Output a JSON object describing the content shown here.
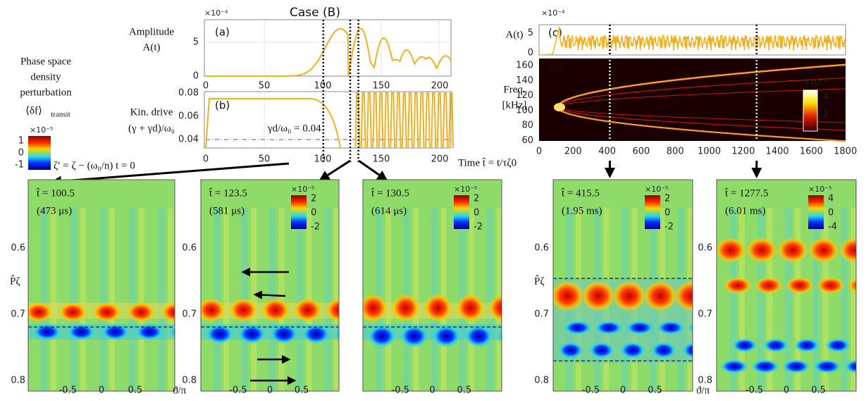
{
  "title": "Case (B)",
  "legend": {
    "lines": [
      "Phase space",
      "density",
      "perturbation"
    ],
    "symbol": "⟨δf⟩",
    "subscript": "transit",
    "colorbar_exponent": "×10⁻⁵",
    "colorbar_ticks": [
      "1",
      "0",
      "-1"
    ],
    "reference": "ζ′ = ζ − (ω₀/n) t = 0"
  },
  "panel_a": {
    "label": "(a)",
    "ylabel": [
      "Amplitude",
      "A(t)"
    ],
    "exponent": "×10⁻⁴",
    "yticks": [
      "5",
      "0"
    ],
    "xticks": [
      "0",
      "50",
      "100",
      "150",
      "200"
    ]
  },
  "panel_b": {
    "label": "(b)",
    "ylabel": [
      "Kin. drive",
      "(γ + γd)/ω₀"
    ],
    "yticks": [
      "0.08",
      "0.06",
      "0.04"
    ],
    "xticks": [
      "0",
      "50",
      "100",
      "150",
      "200"
    ],
    "annotation": "γd/ω₀ = 0.04"
  },
  "panel_c": {
    "label": "(c)",
    "ylabel": "A(t)",
    "exponent": "×10⁻⁴",
    "yticks": [
      "5",
      "0"
    ]
  },
  "panel_d": {
    "label": "(d)",
    "ylabel": [
      "Freq.",
      "[kHz]"
    ],
    "yticks": [
      "160",
      "140",
      "120",
      "100",
      "80",
      "60"
    ],
    "xticks": [
      "0",
      "200",
      "400",
      "600",
      "800",
      "1000",
      "1200",
      "1400",
      "1600",
      "1800"
    ],
    "colorbar_exponent": "×10⁻³",
    "colorbar_ticks": [
      "4",
      "2"
    ],
    "xlabel": "Time t̂ = t/τζ0"
  },
  "snapshots": [
    {
      "time": "t̂ = 100.5",
      "physical": "(473 μs)"
    },
    {
      "time": "t̂ = 123.5",
      "physical": "(581 μs)",
      "colorbar_exponent": "×10⁻⁵",
      "colorbar_ticks": [
        "2",
        "0",
        "-2"
      ]
    },
    {
      "time": "t̂ = 130.5",
      "physical": "(614 μs)",
      "colorbar_exponent": "×10⁻⁵",
      "colorbar_ticks": [
        "2",
        "0",
        "-2"
      ]
    },
    {
      "time": "t̂ = 415.5",
      "physical": "(1.95 ms)",
      "colorbar_exponent": "×10⁻⁵",
      "colorbar_ticks": [
        "2",
        "0",
        "-2"
      ]
    },
    {
      "time": "t̂ = 1277.5",
      "physical": "(6.01 ms)",
      "colorbar_exponent": "×10⁻⁵",
      "colorbar_ticks": [
        "4",
        "0",
        "-4"
      ]
    }
  ],
  "snapshot_axes": {
    "ylabel": "P̂ζ",
    "yticks": [
      "0.6",
      "0.7",
      "0.8"
    ],
    "xticks": [
      "-0.5",
      "0",
      "0.5"
    ],
    "xlabel": "ϑ/π"
  }
}
